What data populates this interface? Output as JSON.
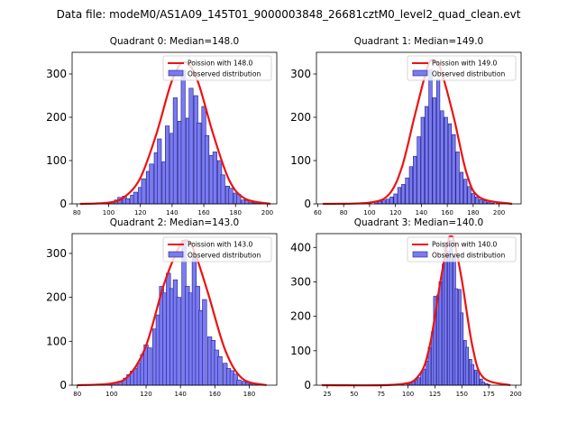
{
  "suptitle": "Data file: modeM0/AS1A09_145T01_9000003848_26681cztM0_level2_quad_clean.evt",
  "colors": {
    "bar_fill": "#7b7bf0",
    "bar_edge": "#1a1a8c",
    "line": "#ee1111"
  },
  "chart_data": [
    {
      "type": "bar",
      "title": "Quadrant 0: Median=148.0",
      "xlim": [
        77,
        206
      ],
      "ylim": [
        0,
        350
      ],
      "xticks": [
        80,
        100,
        120,
        140,
        160,
        180,
        200
      ],
      "yticks": [
        0,
        100,
        200,
        300
      ],
      "legend": [
        "Poission with 148.0",
        "Observed distribution"
      ],
      "legend_position": "top-right",
      "bin_width": 2.55,
      "bins": [
        [
          96,
          1
        ],
        [
          98,
          2
        ],
        [
          100,
          2
        ],
        [
          102,
          4
        ],
        [
          105,
          9
        ],
        [
          107,
          15
        ],
        [
          110,
          18
        ],
        [
          112,
          12
        ],
        [
          115,
          20
        ],
        [
          117,
          27
        ],
        [
          120,
          38
        ],
        [
          122,
          58
        ],
        [
          125,
          75
        ],
        [
          127,
          92
        ],
        [
          130,
          118
        ],
        [
          132,
          150
        ],
        [
          135,
          97
        ],
        [
          137,
          180
        ],
        [
          140,
          163
        ],
        [
          142,
          245
        ],
        [
          145,
          191
        ],
        [
          147,
          308
        ],
        [
          150,
          198
        ],
        [
          152,
          267
        ],
        [
          155,
          250
        ],
        [
          157,
          187
        ],
        [
          160,
          225
        ],
        [
          162,
          158
        ],
        [
          165,
          112
        ],
        [
          167,
          120
        ],
        [
          170,
          100
        ],
        [
          172,
          67
        ],
        [
          175,
          41
        ],
        [
          177,
          36
        ],
        [
          180,
          25
        ],
        [
          182,
          22
        ],
        [
          185,
          9
        ],
        [
          187,
          8
        ],
        [
          190,
          4
        ],
        [
          192,
          2
        ],
        [
          195,
          1
        ]
      ],
      "curve": {
        "x": [
          82,
          100,
          110,
          120,
          130,
          140,
          148,
          156,
          166,
          176,
          186,
          202
        ],
        "y": [
          0,
          3,
          16,
          60,
          160,
          285,
          328,
          285,
          160,
          55,
          12,
          0
        ]
      }
    },
    {
      "type": "bar",
      "title": "Quadrant 1: Median=149.0",
      "xlim": [
        59,
        217
      ],
      "ylim": [
        0,
        350
      ],
      "xticks": [
        60,
        80,
        100,
        120,
        140,
        160,
        180,
        200
      ],
      "yticks": [
        0,
        100,
        200,
        300
      ],
      "legend": [
        "Poission with 149.0",
        "Observed distribution"
      ],
      "legend_position": "top-right",
      "bin_width": 2.55,
      "bins": [
        [
          96,
          1
        ],
        [
          100,
          2
        ],
        [
          105,
          4
        ],
        [
          108,
          6
        ],
        [
          111,
          9
        ],
        [
          114,
          11
        ],
        [
          117,
          16
        ],
        [
          120,
          23
        ],
        [
          123,
          38
        ],
        [
          126,
          45
        ],
        [
          129,
          60
        ],
        [
          132,
          86
        ],
        [
          135,
          110
        ],
        [
          138,
          155
        ],
        [
          141,
          200
        ],
        [
          144,
          225
        ],
        [
          147,
          310
        ],
        [
          150,
          245
        ],
        [
          153,
          288
        ],
        [
          156,
          215
        ],
        [
          159,
          200
        ],
        [
          162,
          185
        ],
        [
          165,
          160
        ],
        [
          168,
          120
        ],
        [
          171,
          73
        ],
        [
          174,
          57
        ],
        [
          177,
          40
        ],
        [
          180,
          24
        ],
        [
          183,
          16
        ],
        [
          186,
          10
        ],
        [
          189,
          7
        ],
        [
          192,
          4
        ],
        [
          195,
          2
        ],
        [
          199,
          1
        ]
      ],
      "curve": {
        "x": [
          64,
          100,
          115,
          125,
          135,
          145,
          150,
          155,
          165,
          175,
          185,
          210
        ],
        "y": [
          0,
          3,
          22,
          85,
          205,
          318,
          330,
          310,
          200,
          70,
          15,
          0
        ]
      }
    },
    {
      "type": "bar",
      "title": "Quadrant 2: Median=143.0",
      "xlim": [
        77,
        196
      ],
      "ylim": [
        0,
        345
      ],
      "xticks": [
        80,
        100,
        120,
        140,
        160,
        180
      ],
      "yticks": [
        0,
        100,
        200,
        300
      ],
      "legend": [
        "Poission with 143.0",
        "Observed distribution"
      ],
      "legend_position": "top-right",
      "bin_width": 2.45,
      "bins": [
        [
          90,
          1
        ],
        [
          95,
          2
        ],
        [
          100,
          3
        ],
        [
          103,
          6
        ],
        [
          105,
          9
        ],
        [
          108,
          16
        ],
        [
          110,
          24
        ],
        [
          112,
          32
        ],
        [
          114,
          38
        ],
        [
          116,
          50
        ],
        [
          118,
          70
        ],
        [
          120,
          92
        ],
        [
          122,
          85
        ],
        [
          125,
          128
        ],
        [
          127,
          160
        ],
        [
          129,
          225
        ],
        [
          131,
          210
        ],
        [
          133,
          255
        ],
        [
          135,
          220
        ],
        [
          137,
          240
        ],
        [
          139,
          200
        ],
        [
          142,
          330
        ],
        [
          144,
          225
        ],
        [
          146,
          210
        ],
        [
          148,
          292
        ],
        [
          150,
          225
        ],
        [
          152,
          170
        ],
        [
          154,
          195
        ],
        [
          157,
          110
        ],
        [
          159,
          102
        ],
        [
          161,
          80
        ],
        [
          163,
          65
        ],
        [
          166,
          50
        ],
        [
          168,
          38
        ],
        [
          170,
          33
        ],
        [
          172,
          25
        ],
        [
          174,
          12
        ],
        [
          177,
          9
        ],
        [
          179,
          6
        ],
        [
          181,
          3
        ],
        [
          184,
          1
        ]
      ],
      "curve": {
        "x": [
          80,
          100,
          110,
          120,
          130,
          138,
          143,
          148,
          156,
          166,
          176,
          190
        ],
        "y": [
          0,
          4,
          22,
          90,
          225,
          305,
          330,
          305,
          210,
          80,
          15,
          0
        ]
      }
    },
    {
      "type": "bar",
      "title": "Quadrant 3: Median=140.0",
      "xlim": [
        15,
        205
      ],
      "ylim": [
        0,
        440
      ],
      "xticks": [
        25,
        50,
        75,
        100,
        125,
        150,
        175,
        200
      ],
      "yticks": [
        0,
        100,
        200,
        300,
        400
      ],
      "legend": [
        "Poission with 140.0",
        "Observed distribution"
      ],
      "legend_position": "top-right",
      "bin_width": 2.55,
      "bins": [
        [
          95,
          2
        ],
        [
          100,
          4
        ],
        [
          103,
          7
        ],
        [
          105,
          11
        ],
        [
          108,
          16
        ],
        [
          110,
          22
        ],
        [
          113,
          38
        ],
        [
          115,
          47
        ],
        [
          118,
          70
        ],
        [
          120,
          110
        ],
        [
          123,
          155
        ],
        [
          125,
          258
        ],
        [
          128,
          262
        ],
        [
          130,
          300
        ],
        [
          133,
          352
        ],
        [
          135,
          415
        ],
        [
          138,
          388
        ],
        [
          140,
          420
        ],
        [
          143,
          375
        ],
        [
          145,
          280
        ],
        [
          148,
          278
        ],
        [
          150,
          210
        ],
        [
          153,
          130
        ],
        [
          155,
          110
        ],
        [
          158,
          75
        ],
        [
          160,
          60
        ],
        [
          163,
          44
        ],
        [
          165,
          37
        ],
        [
          168,
          18
        ],
        [
          170,
          9
        ],
        [
          173,
          5
        ],
        [
          175,
          2
        ]
      ],
      "curve": {
        "x": [
          20,
          90,
          110,
          120,
          130,
          137,
          140,
          143,
          150,
          160,
          170,
          195
        ],
        "y": [
          0,
          2,
          28,
          112,
          300,
          415,
          432,
          415,
          305,
          110,
          22,
          0
        ]
      }
    }
  ]
}
